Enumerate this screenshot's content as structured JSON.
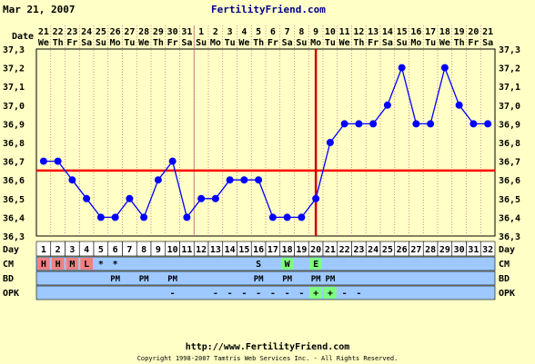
{
  "header": {
    "date": "Mar 21, 2007",
    "site": "FertilityFriend.com"
  },
  "footer": {
    "url": "http://www.FertilityFriend.com",
    "copyright": "Copyright 1998-2007 Tamtris Web Services Inc. - All Rights Reserved."
  },
  "colors": {
    "background": "#ffffc6",
    "line": "#0000ff",
    "coverline": "#ff0000",
    "ovulation_line": "#cc0000",
    "row_fill": "#9ec9ff",
    "cm_red": "#f08080",
    "cm_green": "#7fff7f",
    "grid_dash": "#c06080"
  },
  "chart_data": {
    "type": "line",
    "title": "",
    "row_labels": {
      "date": "Date",
      "day": "Day",
      "cm": "CM",
      "bd": "BD",
      "opk": "OPK"
    },
    "dates": [
      "21",
      "22",
      "23",
      "24",
      "25",
      "26",
      "27",
      "28",
      "29",
      "30",
      "31",
      "1",
      "2",
      "3",
      "4",
      "5",
      "6",
      "7",
      "8",
      "9",
      "10",
      "11",
      "12",
      "13",
      "14",
      "15",
      "16",
      "17",
      "18",
      "19",
      "20",
      "21"
    ],
    "weekdays": [
      "We",
      "Th",
      "Fr",
      "Sa",
      "Su",
      "Mo",
      "Tu",
      "We",
      "Th",
      "Fr",
      "Sa",
      "Su",
      "Mo",
      "Tu",
      "We",
      "Th",
      "Fr",
      "Sa",
      "Su",
      "Mo",
      "Tu",
      "We",
      "Th",
      "Fr",
      "Sa",
      "Su",
      "Mo",
      "Tu",
      "We",
      "Th",
      "Fr",
      "Sa"
    ],
    "days": [
      "1",
      "2",
      "3",
      "4",
      "5",
      "6",
      "7",
      "8",
      "9",
      "10",
      "11",
      "12",
      "13",
      "14",
      "15",
      "16",
      "17",
      "18",
      "19",
      "20",
      "21",
      "22",
      "23",
      "24",
      "25",
      "26",
      "27",
      "28",
      "29",
      "30",
      "31",
      "32"
    ],
    "temps": [
      36.7,
      36.7,
      36.6,
      36.5,
      36.4,
      36.4,
      36.5,
      36.4,
      36.6,
      36.7,
      36.4,
      36.5,
      36.5,
      36.6,
      36.6,
      36.6,
      36.4,
      36.4,
      36.4,
      36.5,
      36.8,
      36.9,
      36.9,
      36.9,
      37.0,
      37.2,
      36.9,
      36.9,
      37.2,
      37.0,
      36.9,
      36.9
    ],
    "y_ticks": [
      "37,3",
      "37,2",
      "37,1",
      "37,0",
      "36,9",
      "36,8",
      "36,7",
      "36,6",
      "36,5",
      "36,4",
      "36,3"
    ],
    "ylim": [
      36.3,
      37.3
    ],
    "coverline": 36.65,
    "ovulation_day": 20,
    "month_boundary_after_day": 11,
    "cm": [
      "H",
      "H",
      "M",
      "L",
      "*",
      "*",
      "",
      "",
      "",
      "",
      "",
      "",
      "",
      "",
      "",
      "S",
      "",
      "W",
      "",
      "E",
      "",
      "",
      "",
      "",
      "",
      "",
      "",
      "",
      "",
      "",
      "",
      ""
    ],
    "cm_color": [
      "red",
      "red",
      "red",
      "red",
      "",
      "",
      "",
      "",
      "",
      "",
      "",
      "",
      "",
      "",
      "",
      "",
      "",
      "green",
      "",
      "green",
      "",
      "",
      "",
      "",
      "",
      "",
      "",
      "",
      "",
      "",
      "",
      ""
    ],
    "bd": [
      "",
      "",
      "",
      "",
      "",
      "PM",
      "",
      "PM",
      "",
      "PM",
      "",
      "",
      "",
      "",
      "",
      "PM",
      "",
      "PM",
      "",
      "PM",
      "PM",
      "",
      "",
      "",
      "",
      "",
      "",
      "",
      "",
      "",
      "",
      ""
    ],
    "opk": [
      "",
      "",
      "",
      "",
      "",
      "",
      "",
      "",
      "",
      "-",
      "",
      "",
      "-",
      "-",
      "-",
      "-",
      "-",
      "-",
      "-",
      "+",
      "+",
      "-",
      "-",
      "",
      "",
      "",
      "",
      "",
      "",
      "",
      "",
      ""
    ],
    "opk_color": [
      "",
      "",
      "",
      "",
      "",
      "",
      "",
      "",
      "",
      "",
      "",
      "",
      "",
      "",
      "",
      "",
      "",
      "",
      "",
      "green",
      "green",
      "",
      "",
      "",
      "",
      "",
      "",
      "",
      "",
      "",
      "",
      ""
    ]
  }
}
